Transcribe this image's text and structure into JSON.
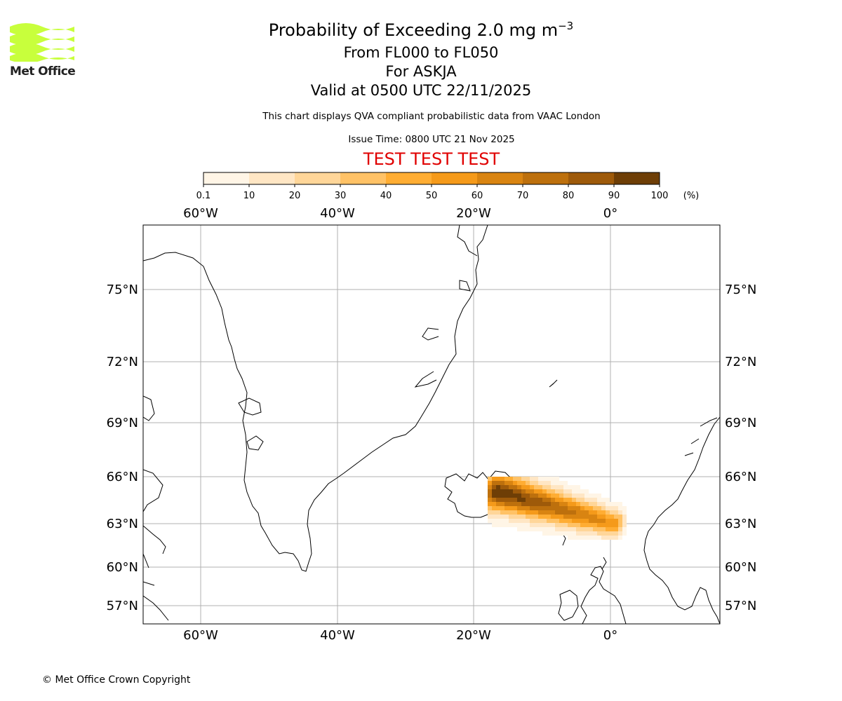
{
  "logo": {
    "text": "Met Office",
    "color": "#c8ff3c"
  },
  "titles": {
    "main_prefix": "Probability of Exceeding 2.0 mg m",
    "main_exp": "−3",
    "levels": "From FL000 to FL050",
    "volcano": "For ASKJA",
    "valid": "Valid at 0500 UTC 22/11/2025"
  },
  "notes": {
    "description": "This chart displays QVA compliant probabilistic data from VAAC London",
    "issue_time": "Issue Time: 0800 UTC 21 Nov 2025",
    "test_banner": "TEST TEST TEST"
  },
  "colorbar": {
    "ticks": [
      "0.1",
      "10",
      "20",
      "30",
      "40",
      "50",
      "60",
      "70",
      "80",
      "90",
      "100"
    ],
    "unit": "(%)",
    "colors": [
      "#fff5e6",
      "#ffe6c4",
      "#ffd699",
      "#ffc266",
      "#ffad33",
      "#f59a1a",
      "#d98411",
      "#bd700d",
      "#9e5a0a",
      "#6e3e06"
    ]
  },
  "map": {
    "lon_labels": [
      "60°W",
      "40°W",
      "20°W",
      "0°"
    ],
    "lat_labels": [
      "75°N",
      "72°N",
      "69°N",
      "66°N",
      "63°N",
      "60°N",
      "57°N"
    ],
    "gridline_color": "#b0b0b0"
  },
  "copyright": "© Met Office Crown Copyright"
}
